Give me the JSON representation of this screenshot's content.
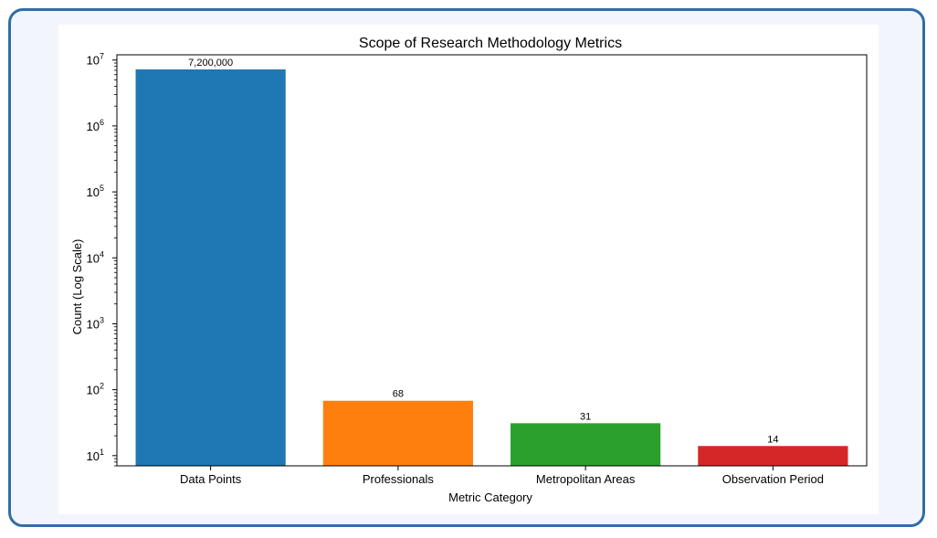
{
  "chart_data": {
    "type": "bar",
    "title": "Scope of Research Methodology Metrics",
    "xlabel": "Metric Category",
    "ylabel": "Count (Log Scale)",
    "yscale": "log",
    "ylim": [
      7,
      12000000
    ],
    "categories": [
      "Data Points",
      "Professionals",
      "Metropolitan Areas",
      "Observation Period"
    ],
    "values": [
      7200000,
      68,
      31,
      14
    ],
    "value_labels": [
      "7,200,000",
      "68",
      "31",
      "14"
    ],
    "colors": [
      "#1f77b4",
      "#ff7f0e",
      "#2ca02c",
      "#d62728"
    ],
    "yticks": [
      {
        "value": 10,
        "base": "10",
        "exp": "1"
      },
      {
        "value": 100,
        "base": "10",
        "exp": "2"
      },
      {
        "value": 1000,
        "base": "10",
        "exp": "3"
      },
      {
        "value": 10000,
        "base": "10",
        "exp": "4"
      },
      {
        "value": 100000,
        "base": "10",
        "exp": "5"
      },
      {
        "value": 1000000,
        "base": "10",
        "exp": "6"
      },
      {
        "value": 10000000,
        "base": "10",
        "exp": "7"
      }
    ],
    "grid": false,
    "legend": "none"
  }
}
